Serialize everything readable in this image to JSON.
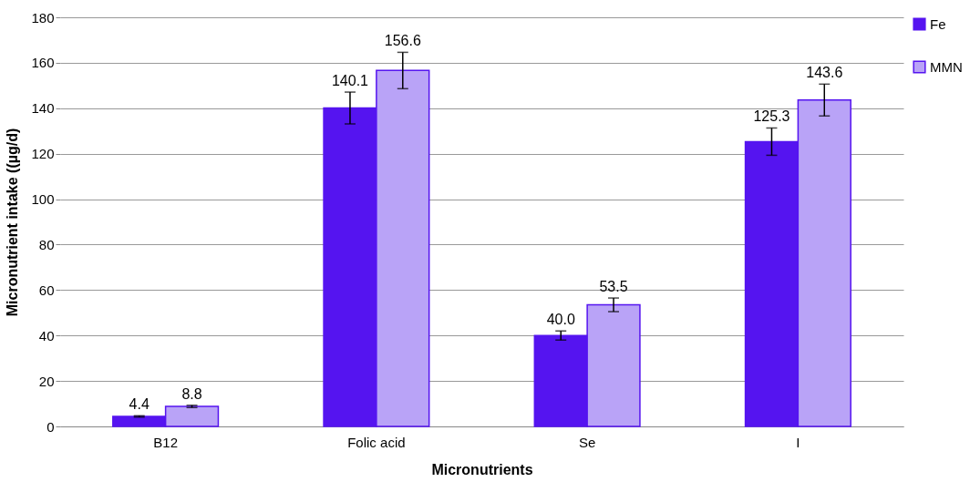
{
  "chart_data": {
    "type": "bar",
    "xlabel": "Micronutrients",
    "ylabel": "Micronutrient intake ((µg/d)",
    "categories": [
      "B12",
      "Folic acid",
      "Se",
      "I"
    ],
    "series": [
      {
        "name": "Fe",
        "color": "#5514f0",
        "values": [
          4.4,
          140.1,
          40.0,
          125.3
        ],
        "errors": [
          0.3,
          7,
          2,
          6
        ],
        "value_labels": [
          "4.4",
          "140.1",
          "40.0",
          "125.3"
        ]
      },
      {
        "name": "MMN",
        "color": "#b9a3f7",
        "values": [
          8.8,
          156.6,
          53.5,
          143.6
        ],
        "errors": [
          0.5,
          8,
          3,
          7
        ],
        "value_labels": [
          "8.8",
          "156.6",
          "53.5",
          "143.6"
        ]
      }
    ],
    "ylim": [
      0,
      180
    ],
    "yticks": [
      0,
      20,
      40,
      60,
      80,
      100,
      120,
      140,
      160,
      180
    ],
    "grid": "y",
    "legend": "right"
  }
}
